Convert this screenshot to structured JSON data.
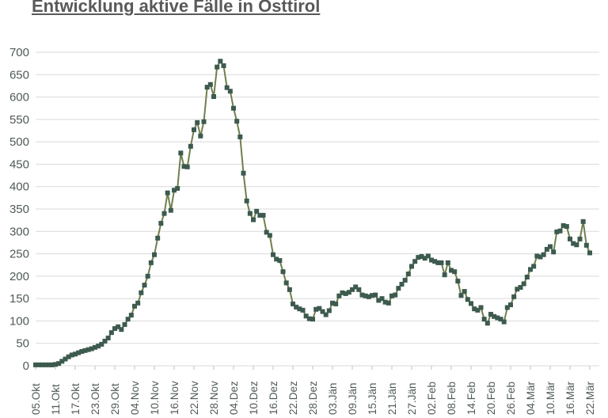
{
  "title": "Entwicklung aktive Fälle in Osttirol",
  "chart_data": {
    "type": "line",
    "title": "Entwicklung aktive Fälle in Osttirol",
    "xlabel": "",
    "ylabel": "",
    "ylim": [
      0,
      700
    ],
    "y_ticks": [
      0,
      50,
      100,
      150,
      200,
      250,
      300,
      350,
      400,
      450,
      500,
      550,
      600,
      650,
      700
    ],
    "grid": "horizontal",
    "legend": "none",
    "marker": "square",
    "x_tick_labels": [
      "05.Okt",
      "11.Okt",
      "17.Okt",
      "23.Okt",
      "29.Okt",
      "04.Nov",
      "10.Nov",
      "16.Nov",
      "22.Nov",
      "28.Nov",
      "04.Dez",
      "10.Dez",
      "16.Dez",
      "22.Dez",
      "28.Dez",
      "03.Jän",
      "09.Jän",
      "15.Jän",
      "21.Jän",
      "27.Jän",
      "02.Feb",
      "08.Feb",
      "14.Feb",
      "20.Feb",
      "26.Feb",
      "04.Mär",
      "10.Mär",
      "16.Mär",
      "22.Mär"
    ],
    "x_tick_every_n_points": 6,
    "x_first_point_label": "05.Okt",
    "x_last_point_label": "22.Mär",
    "series": [
      {
        "values": [
          2,
          2,
          2,
          2,
          2,
          2,
          3,
          5,
          10,
          15,
          20,
          24,
          26,
          29,
          32,
          34,
          36,
          38,
          41,
          44,
          48,
          55,
          62,
          74,
          83,
          87,
          81,
          92,
          104,
          113,
          133,
          140,
          163,
          180,
          200,
          230,
          248,
          285,
          318,
          340,
          386,
          347,
          392,
          396,
          475,
          445,
          444,
          490,
          527,
          543,
          513,
          545,
          622,
          628,
          601,
          667,
          680,
          670,
          621,
          613,
          575,
          546,
          511,
          430,
          368,
          340,
          326,
          345,
          336,
          336,
          298,
          291,
          248,
          238,
          235,
          210,
          185,
          170,
          138,
          131,
          127,
          124,
          111,
          105,
          104,
          126,
          128,
          121,
          114,
          123,
          140,
          138,
          156,
          163,
          161,
          164,
          170,
          176,
          170,
          158,
          156,
          154,
          157,
          158,
          146,
          150,
          142,
          140,
          156,
          158,
          173,
          182,
          191,
          205,
          222,
          233,
          242,
          244,
          240,
          245,
          236,
          233,
          230,
          230,
          203,
          230,
          213,
          210,
          189,
          157,
          166,
          148,
          139,
          127,
          124,
          130,
          104,
          95,
          115,
          110,
          107,
          104,
          98,
          130,
          136,
          154,
          171,
          175,
          183,
          198,
          215,
          222,
          245,
          243,
          248,
          260,
          266,
          254,
          299,
          301,
          313,
          311,
          283,
          273,
          270,
          283,
          322,
          269,
          252
        ]
      }
    ],
    "colors": {
      "line": "#6f7f4d",
      "marker": "#3d5a4e",
      "gridline": "#d9d9d9",
      "tick_mark": "#bfbfbf",
      "axis_text": "#4f5b55",
      "title_text": "#595959"
    }
  }
}
